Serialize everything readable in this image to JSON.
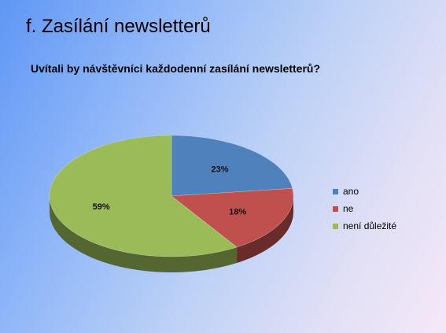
{
  "slide": {
    "title": "f. Zasílání newsletterů"
  },
  "chart_data": {
    "type": "pie",
    "title": "Uvítali by návštěvníci každodenní zasílání newsletterů?",
    "categories": [
      "ano",
      "ne",
      "není důležité"
    ],
    "values": [
      23,
      18,
      59
    ],
    "data_labels": [
      "23%",
      "18%",
      "59%"
    ],
    "colors": [
      "#4f81bd",
      "#c0504d",
      "#9bbb59"
    ],
    "three_d": true,
    "legend_position": "right"
  }
}
